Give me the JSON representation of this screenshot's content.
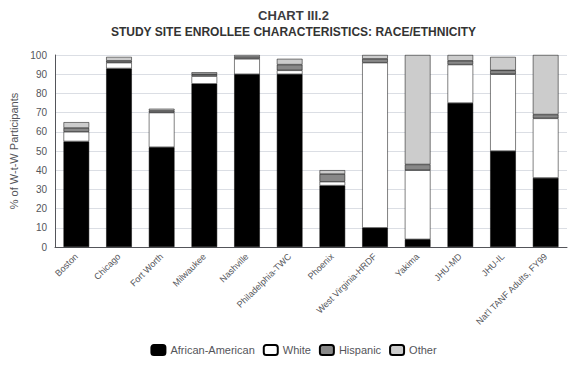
{
  "chart_data": {
    "type": "bar",
    "title": "CHART III.2",
    "subtitle": "STUDY SITE ENROLLEE CHARACTERISTICS: RACE/ETHNICITY",
    "y_label": "% of W-t-W Participants",
    "categories": [
      "Boston",
      "Chicago",
      "Fort Worth",
      "Milwaukee",
      "Nashville",
      "Philadelphia-TWC",
      "Phoenix",
      "West Virginia-HRDF",
      "Yakima",
      "JHU-MD",
      "JHU-IL",
      "Nat'l TANF Adults, FY99"
    ],
    "series": [
      {
        "name": "African-American",
        "color": "#000000",
        "values": [
          55,
          93,
          52,
          85,
          90,
          90,
          32,
          10,
          4,
          75,
          50,
          36
        ]
      },
      {
        "name": "White",
        "color": "#ffffff",
        "values": [
          5,
          3,
          18,
          4,
          8,
          2,
          2,
          86,
          36,
          20,
          40,
          31
        ]
      },
      {
        "name": "Hispanic",
        "color": "#888888",
        "values": [
          2,
          1,
          1,
          1,
          1,
          3,
          4,
          2,
          3,
          2,
          2,
          2
        ]
      },
      {
        "name": "Other",
        "color": "#cccccc",
        "values": [
          3,
          2,
          1,
          1,
          1,
          3,
          2,
          2,
          57,
          3,
          7,
          31
        ]
      }
    ],
    "stacked": true,
    "ylim": [
      0,
      100
    ],
    "yticks": [
      0,
      10,
      20,
      30,
      40,
      50,
      60,
      70,
      80,
      90,
      100
    ],
    "grid": true,
    "legend": "bottom"
  }
}
